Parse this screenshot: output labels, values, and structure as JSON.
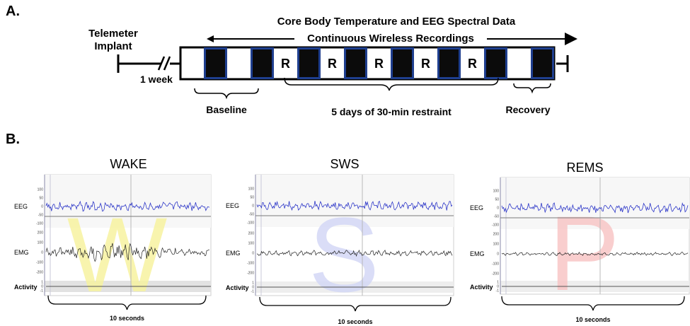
{
  "panel_a": {
    "letter": "A.",
    "telemeter_line1": "Telemeter",
    "telemeter_line2": "Implant",
    "week_label": "1 week",
    "top_title": "Core Body Temperature and EEG Spectral Data",
    "arrow_label": "Continuous Wireless Recordings",
    "restraint_marker": "R",
    "baseline_label": "Baseline",
    "restraint_label": "5 days of 30-min restraint",
    "recovery_label": "Recovery",
    "timeline": [
      "light",
      "dark",
      "light",
      "dark",
      "R",
      "dark",
      "R",
      "dark",
      "R",
      "dark",
      "R",
      "dark",
      "R",
      "dark",
      "light",
      "dark"
    ],
    "colors": {
      "dark_fill": "#0b0b0b",
      "dark_border": "#1f3f8f",
      "light_fill": "#ffffff"
    }
  },
  "panel_b": {
    "letter": "B.",
    "y_ticks": {
      "eeg": [
        "100",
        "50",
        "0",
        "-50",
        "-100"
      ],
      "emg": [
        "200",
        "100",
        "0",
        "-100",
        "-200"
      ],
      "activity": [
        "1",
        "0",
        "-1"
      ]
    },
    "channel_labels": {
      "eeg": "EEG",
      "emg": "EMG",
      "activity": "Activity"
    },
    "duration_label": "10 seconds",
    "states": [
      {
        "title": "WAKE",
        "watermark": "W",
        "watermark_color": "#f7f3a0",
        "emg_amplitude": 0.55
      },
      {
        "title": "SWS",
        "watermark": "S",
        "watermark_color": "#d4d8f6",
        "emg_amplitude": 0.2
      },
      {
        "title": "REMS",
        "watermark": "P",
        "watermark_color": "#f8c6c6",
        "emg_amplitude": 0.12
      }
    ],
    "colors": {
      "eeg_trace": "#2c36c8",
      "emg_trace": "#222222"
    }
  }
}
